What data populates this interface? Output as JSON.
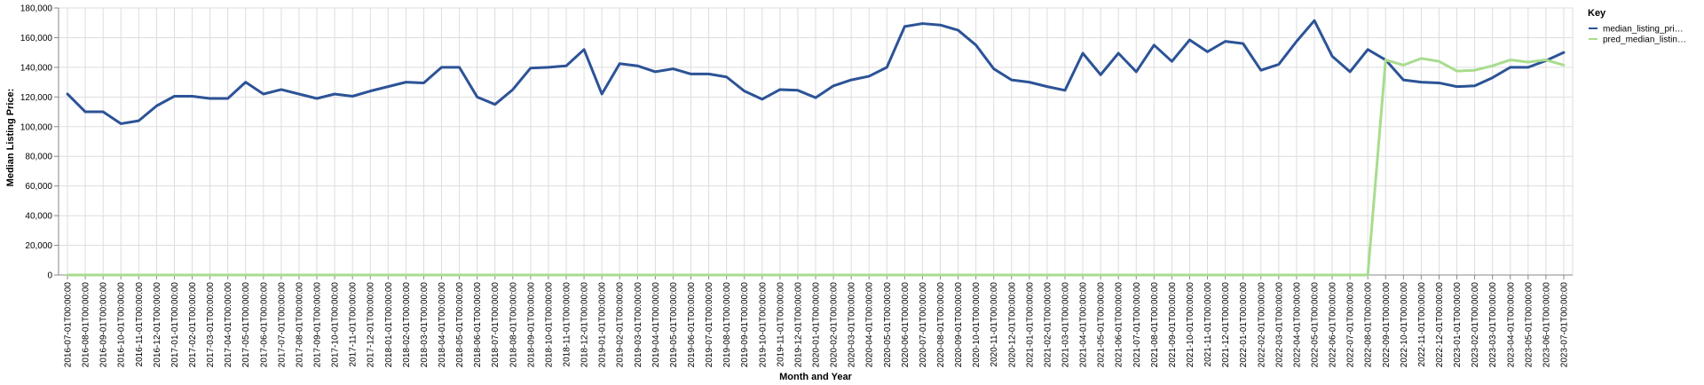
{
  "chart_data": {
    "type": "line",
    "xlabel": "Month and Year",
    "ylabel": "Median Listing Price:",
    "ylim": [
      0,
      180000
    ],
    "yticks": [
      "0",
      "20,000",
      "40,000",
      "60,000",
      "80,000",
      "100,000",
      "120,000",
      "140,000",
      "160,000",
      "180,000"
    ],
    "grid": true,
    "legend": {
      "title": "Key",
      "position": "right"
    },
    "x": [
      "2016-07-01T00:00:00",
      "2016-08-01T00:00:00",
      "2016-09-01T00:00:00",
      "2016-10-01T00:00:00",
      "2016-11-01T00:00:00",
      "2016-12-01T00:00:00",
      "2017-01-01T00:00:00",
      "2017-02-01T00:00:00",
      "2017-03-01T00:00:00",
      "2017-04-01T00:00:00",
      "2017-05-01T00:00:00",
      "2017-06-01T00:00:00",
      "2017-07-01T00:00:00",
      "2017-08-01T00:00:00",
      "2017-09-01T00:00:00",
      "2017-10-01T00:00:00",
      "2017-11-01T00:00:00",
      "2017-12-01T00:00:00",
      "2018-01-01T00:00:00",
      "2018-02-01T00:00:00",
      "2018-03-01T00:00:00",
      "2018-04-01T00:00:00",
      "2018-05-01T00:00:00",
      "2018-06-01T00:00:00",
      "2018-07-01T00:00:00",
      "2018-08-01T00:00:00",
      "2018-09-01T00:00:00",
      "2018-10-01T00:00:00",
      "2018-11-01T00:00:00",
      "2018-12-01T00:00:00",
      "2019-01-01T00:00:00",
      "2019-02-01T00:00:00",
      "2019-03-01T00:00:00",
      "2019-04-01T00:00:00",
      "2019-05-01T00:00:00",
      "2019-06-01T00:00:00",
      "2019-07-01T00:00:00",
      "2019-08-01T00:00:00",
      "2019-09-01T00:00:00",
      "2019-10-01T00:00:00",
      "2019-11-01T00:00:00",
      "2019-12-01T00:00:00",
      "2020-01-01T00:00:00",
      "2020-02-01T00:00:00",
      "2020-03-01T00:00:00",
      "2020-04-01T00:00:00",
      "2020-05-01T00:00:00",
      "2020-06-01T00:00:00",
      "2020-07-01T00:00:00",
      "2020-08-01T00:00:00",
      "2020-09-01T00:00:00",
      "2020-10-01T00:00:00",
      "2020-11-01T00:00:00",
      "2020-12-01T00:00:00",
      "2021-01-01T00:00:00",
      "2021-02-01T00:00:00",
      "2021-03-01T00:00:00",
      "2021-04-01T00:00:00",
      "2021-05-01T00:00:00",
      "2021-06-01T00:00:00",
      "2021-07-01T00:00:00",
      "2021-08-01T00:00:00",
      "2021-09-01T00:00:00",
      "2021-10-01T00:00:00",
      "2021-11-01T00:00:00",
      "2021-12-01T00:00:00",
      "2022-01-01T00:00:00",
      "2022-02-01T00:00:00",
      "2022-03-01T00:00:00",
      "2022-04-01T00:00:00",
      "2022-05-01T00:00:00",
      "2022-06-01T00:00:00",
      "2022-07-01T00:00:00",
      "2022-08-01T00:00:00",
      "2022-09-01T00:00:00",
      "2022-10-01T00:00:00",
      "2022-11-01T00:00:00",
      "2022-12-01T00:00:00",
      "2023-01-01T00:00:00",
      "2023-02-01T00:00:00",
      "2023-03-01T00:00:00",
      "2023-04-01T00:00:00",
      "2023-05-01T00:00:00",
      "2023-06-01T00:00:00",
      "2023-07-01T00:00:00"
    ],
    "series": [
      {
        "name": "median_listing_pri…",
        "color": "#2c5396",
        "values": [
          122000,
          110000,
          110000,
          102000,
          104000,
          114000,
          120500,
          120500,
          119000,
          119000,
          130000,
          122000,
          125000,
          122000,
          119000,
          122000,
          120500,
          124000,
          127000,
          130000,
          129500,
          140000,
          140000,
          120000,
          115000,
          125000,
          139500,
          140000,
          141000,
          152000,
          122000,
          142500,
          141000,
          137000,
          139000,
          135500,
          135500,
          133500,
          124000,
          118500,
          125000,
          124500,
          119500,
          127500,
          131500,
          134000,
          140000,
          167500,
          169500,
          168500,
          165000,
          155000,
          139000,
          131500,
          130000,
          127000,
          124500,
          149500,
          135000,
          149500,
          137000,
          155000,
          144000,
          158500,
          150500,
          157500,
          156000,
          138000,
          142000,
          157500,
          171500,
          147500,
          137000,
          152000,
          145000,
          131500,
          130000,
          129500,
          127000,
          127500,
          133000,
          140000,
          140000,
          144500,
          150000
        ]
      },
      {
        "name": "pred_median_listin…",
        "color": "#a8dc8e",
        "values": [
          0,
          0,
          0,
          0,
          0,
          0,
          0,
          0,
          0,
          0,
          0,
          0,
          0,
          0,
          0,
          0,
          0,
          0,
          0,
          0,
          0,
          0,
          0,
          0,
          0,
          0,
          0,
          0,
          0,
          0,
          0,
          0,
          0,
          0,
          0,
          0,
          0,
          0,
          0,
          0,
          0,
          0,
          0,
          0,
          0,
          0,
          0,
          0,
          0,
          0,
          0,
          0,
          0,
          0,
          0,
          0,
          0,
          0,
          0,
          0,
          0,
          0,
          0,
          0,
          0,
          0,
          0,
          0,
          0,
          0,
          0,
          0,
          0,
          0,
          145000,
          141500,
          146000,
          144000,
          137500,
          138000,
          141000,
          145000,
          143500,
          145000,
          141500
        ]
      }
    ]
  }
}
